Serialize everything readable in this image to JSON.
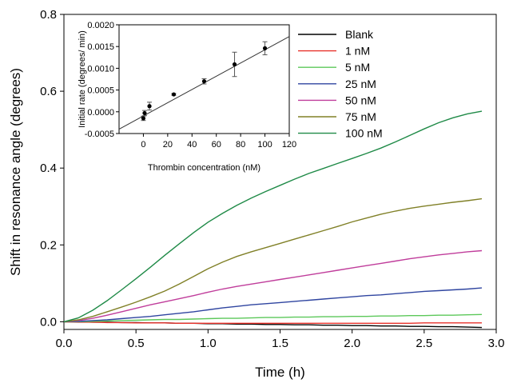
{
  "chart_data": [
    {
      "type": "line",
      "xlabel": "Time (h)",
      "ylabel": "Shift in resonance angle (degrees)",
      "xlim": [
        0.0,
        3.0
      ],
      "ylim": [
        -0.02,
        0.8
      ],
      "xticks": [
        "0.0",
        "0.5",
        "1.0",
        "1.5",
        "2.0",
        "2.5",
        "3.0"
      ],
      "yticks": [
        "0.0",
        "0.2",
        "0.4",
        "0.6",
        "0.8"
      ],
      "xtick_values": [
        0.0,
        0.5,
        1.0,
        1.5,
        2.0,
        2.5,
        3.0
      ],
      "ytick_values": [
        0.0,
        0.2,
        0.4,
        0.6,
        0.8
      ],
      "grid": false,
      "legend_position": "top-right",
      "x": [
        0.0,
        0.1,
        0.2,
        0.3,
        0.4,
        0.5,
        0.6,
        0.7,
        0.8,
        0.9,
        1.0,
        1.1,
        1.2,
        1.3,
        1.4,
        1.5,
        1.6,
        1.7,
        1.8,
        1.9,
        2.0,
        2.1,
        2.2,
        2.3,
        2.4,
        2.5,
        2.6,
        2.7,
        2.8,
        2.9
      ],
      "series": [
        {
          "name": "Blank",
          "color": "#000000",
          "values": [
            0.0,
            0.0,
            -0.001,
            -0.001,
            -0.002,
            -0.002,
            -0.003,
            -0.003,
            -0.004,
            -0.004,
            -0.005,
            -0.005,
            -0.006,
            -0.006,
            -0.007,
            -0.007,
            -0.008,
            -0.008,
            -0.009,
            -0.009,
            -0.01,
            -0.01,
            -0.011,
            -0.011,
            -0.012,
            -0.012,
            -0.013,
            -0.013,
            -0.014,
            -0.015
          ]
        },
        {
          "name": "1 nM",
          "color": "#e8322b",
          "values": [
            0.0,
            -0.001,
            -0.001,
            -0.002,
            -0.002,
            -0.003,
            -0.003,
            -0.003,
            -0.004,
            -0.004,
            -0.004,
            -0.004,
            -0.004,
            -0.004,
            -0.004,
            -0.004,
            -0.004,
            -0.004,
            -0.004,
            -0.004,
            -0.004,
            -0.004,
            -0.004,
            -0.004,
            -0.004,
            -0.003,
            -0.003,
            -0.003,
            -0.003,
            -0.003
          ]
        },
        {
          "name": "5 nM",
          "color": "#5cc85a",
          "values": [
            0.0,
            0.0,
            0.001,
            0.002,
            0.003,
            0.004,
            0.005,
            0.006,
            0.006,
            0.007,
            0.008,
            0.009,
            0.009,
            0.01,
            0.011,
            0.011,
            0.012,
            0.012,
            0.013,
            0.013,
            0.014,
            0.014,
            0.015,
            0.015,
            0.016,
            0.016,
            0.017,
            0.017,
            0.018,
            0.019
          ]
        },
        {
          "name": "25 nM",
          "color": "#2f45a0",
          "values": [
            0.0,
            0.001,
            0.003,
            0.005,
            0.008,
            0.011,
            0.014,
            0.018,
            0.022,
            0.026,
            0.031,
            0.036,
            0.04,
            0.044,
            0.047,
            0.05,
            0.053,
            0.056,
            0.059,
            0.062,
            0.065,
            0.068,
            0.07,
            0.073,
            0.076,
            0.079,
            0.081,
            0.083,
            0.085,
            0.088
          ]
        },
        {
          "name": "50 nM",
          "color": "#c03d9b",
          "values": [
            0.0,
            0.003,
            0.009,
            0.017,
            0.026,
            0.035,
            0.044,
            0.052,
            0.06,
            0.068,
            0.077,
            0.085,
            0.092,
            0.098,
            0.104,
            0.11,
            0.116,
            0.122,
            0.128,
            0.134,
            0.14,
            0.146,
            0.152,
            0.158,
            0.164,
            0.169,
            0.174,
            0.178,
            0.182,
            0.185
          ]
        },
        {
          "name": "75 nM",
          "color": "#808027",
          "values": [
            0.0,
            0.005,
            0.014,
            0.026,
            0.038,
            0.051,
            0.065,
            0.08,
            0.098,
            0.118,
            0.138,
            0.155,
            0.17,
            0.182,
            0.193,
            0.204,
            0.215,
            0.226,
            0.237,
            0.248,
            0.26,
            0.27,
            0.28,
            0.288,
            0.295,
            0.301,
            0.306,
            0.311,
            0.315,
            0.32
          ]
        },
        {
          "name": "100 nM",
          "color": "#1f8a47",
          "values": [
            0.0,
            0.01,
            0.03,
            0.055,
            0.083,
            0.112,
            0.142,
            0.173,
            0.203,
            0.232,
            0.259,
            0.282,
            0.303,
            0.322,
            0.339,
            0.355,
            0.371,
            0.386,
            0.399,
            0.412,
            0.425,
            0.438,
            0.452,
            0.468,
            0.485,
            0.502,
            0.518,
            0.531,
            0.541,
            0.548
          ]
        }
      ]
    },
    {
      "type": "scatter",
      "xlabel": "Thrombin concentration (nM)",
      "ylabel": "Initial rate (degrees/ min)",
      "xlim": [
        -20,
        120
      ],
      "ylim": [
        -0.0005,
        0.002
      ],
      "xticks": [
        "0",
        "20",
        "40",
        "60",
        "80",
        "100",
        "120"
      ],
      "yticks": [
        "-0.0005",
        "0.0000",
        "0.0005",
        "0.0010",
        "0.0015",
        "0.0020"
      ],
      "xtick_values": [
        0,
        20,
        40,
        60,
        80,
        100,
        120
      ],
      "ytick_values": [
        -0.0005,
        0.0,
        0.0005,
        0.001,
        0.0015,
        0.002
      ],
      "grid": false,
      "points": [
        {
          "x": 0,
          "y": -0.00015,
          "err": 5e-05
        },
        {
          "x": 1,
          "y": -3e-05,
          "err": 6e-05
        },
        {
          "x": 5,
          "y": 0.00013,
          "err": 9e-05
        },
        {
          "x": 25,
          "y": 0.0004,
          "err": 2e-05
        },
        {
          "x": 50,
          "y": 0.0007,
          "err": 6e-05
        },
        {
          "x": 75,
          "y": 0.00109,
          "err": 0.00028
        },
        {
          "x": 100,
          "y": 0.00146,
          "err": 0.00015
        }
      ],
      "fit_line": {
        "x": [
          -20,
          120
        ],
        "y": [
          -0.0004,
          0.00173
        ]
      }
    }
  ]
}
